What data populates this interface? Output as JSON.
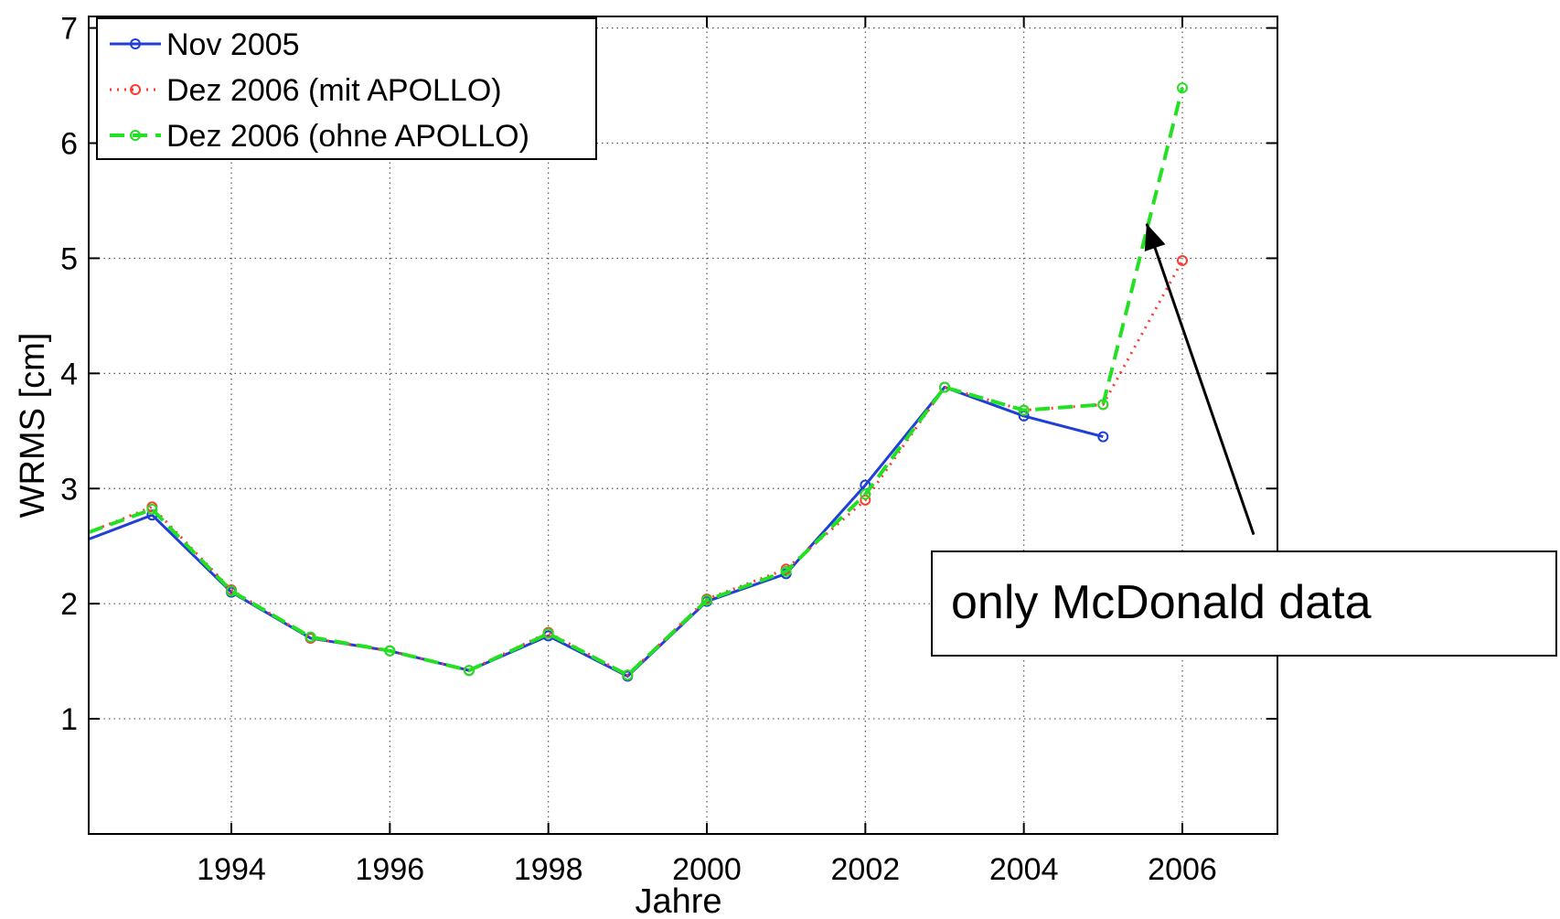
{
  "chart_data": {
    "type": "line",
    "title": "",
    "xlabel": "Jahre",
    "ylabel": "WRMS [cm]",
    "xlim": [
      1992.2,
      2007.2
    ],
    "ylim": [
      0,
      7.1
    ],
    "xticks": [
      1994,
      1996,
      1998,
      2000,
      2002,
      2004,
      2006
    ],
    "yticks": [
      1,
      2,
      3,
      4,
      5,
      6,
      7
    ],
    "grid": true,
    "legend_position": "top-left",
    "series": [
      {
        "name": "Nov 2005",
        "color": "#1f3fd8",
        "line_style": "solid",
        "marker": "circle",
        "x": [
          1992.2,
          1993,
          1994,
          1995,
          1996,
          1997,
          1998,
          1999,
          2000,
          2001,
          2002,
          2003,
          2004,
          2005
        ],
        "y": [
          2.56,
          2.77,
          2.1,
          1.7,
          1.59,
          1.42,
          1.72,
          1.37,
          2.02,
          2.26,
          3.03,
          3.88,
          3.63,
          3.45
        ]
      },
      {
        "name": "Dez 2006 (mit APOLLO)",
        "color": "#ff3b30",
        "line_style": "dotted",
        "marker": "circle",
        "x": [
          1992.2,
          1993,
          1994,
          1995,
          1996,
          1997,
          1998,
          1999,
          2000,
          2001,
          2002,
          2003,
          2004,
          2005,
          2006
        ],
        "y": [
          2.62,
          2.84,
          2.12,
          1.7,
          1.59,
          1.42,
          1.75,
          1.38,
          2.04,
          2.3,
          2.9,
          3.88,
          3.68,
          3.73,
          4.98
        ]
      },
      {
        "name": "Dez 2006 (ohne APOLLO)",
        "color": "#22e022",
        "line_style": "dashed",
        "marker": "circle",
        "x": [
          1992.2,
          1993,
          1994,
          1995,
          1996,
          1997,
          1998,
          1999,
          2000,
          2001,
          2002,
          2003,
          2004,
          2005,
          2006
        ],
        "y": [
          2.62,
          2.82,
          2.11,
          1.71,
          1.59,
          1.42,
          1.74,
          1.38,
          2.03,
          2.28,
          2.95,
          3.88,
          3.68,
          3.73,
          6.48
        ]
      }
    ],
    "annotations": [
      {
        "text": "only McDonald data",
        "arrow_target": [
          2005.55,
          5.3
        ],
        "arrow_source": [
          2006.9,
          2.6
        ]
      }
    ]
  }
}
